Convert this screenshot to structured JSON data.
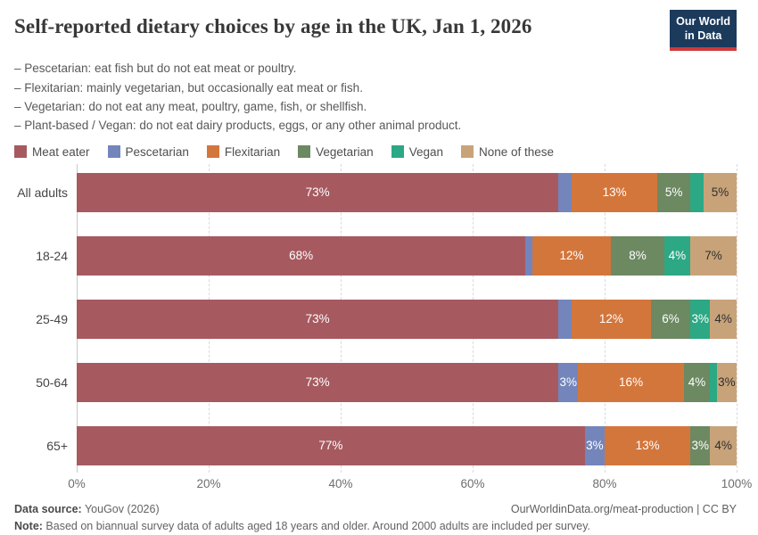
{
  "header": {
    "title": "Self-reported dietary choices by age in the UK, Jan 1, 2026",
    "logo": {
      "line1": "Our World",
      "line2": "in Data"
    },
    "subtitle_lines": [
      "– Pescetarian: eat fish but do not eat meat or poultry.",
      "– Flexitarian: mainly vegetarian, but occasionally eat meat or fish.",
      "– Vegetarian: do not eat any meat, poultry, game, fish, or shellfish.",
      "– Plant-based / Vegan: do not eat dairy products, eggs, or any other animal product."
    ]
  },
  "brand": {
    "logo_bg": "#1B3A5C",
    "logo_underline": "#CE3B3B"
  },
  "chart_data": {
    "type": "bar",
    "orientation": "horizontal",
    "stacked": true,
    "title": "Self-reported dietary choices by age in the UK, Jan 1, 2026",
    "categories": [
      "All adults",
      "18-24",
      "25-49",
      "50-64",
      "65+"
    ],
    "series": [
      {
        "name": "Meat eater",
        "color": "#A65A60",
        "label_color": "#ffffff",
        "values": [
          73,
          68,
          73,
          73,
          77
        ]
      },
      {
        "name": "Pescetarian",
        "color": "#7385BB",
        "label_color": "#ffffff",
        "values": [
          2,
          1,
          2,
          3,
          3
        ]
      },
      {
        "name": "Flexitarian",
        "color": "#D3763C",
        "label_color": "#ffffff",
        "values": [
          13,
          12,
          12,
          16,
          13
        ]
      },
      {
        "name": "Vegetarian",
        "color": "#6C8962",
        "label_color": "#ffffff",
        "values": [
          5,
          8,
          6,
          4,
          3
        ]
      },
      {
        "name": "Vegan",
        "color": "#2CA884",
        "label_color": "#ffffff",
        "values": [
          2,
          4,
          3,
          1,
          0
        ]
      },
      {
        "name": "None of these",
        "color": "#C8A379",
        "label_color": "#2f2f2f",
        "values": [
          5,
          7,
          4,
          3,
          4
        ]
      }
    ],
    "value_suffix": "%",
    "label_min_value": 3,
    "xlim": [
      0,
      100
    ],
    "x_ticks": [
      {
        "label": "0%",
        "value": 0
      },
      {
        "label": "20%",
        "value": 20
      },
      {
        "label": "40%",
        "value": 40
      },
      {
        "label": "60%",
        "value": 60
      },
      {
        "label": "80%",
        "value": 80
      },
      {
        "label": "100%",
        "value": 100
      }
    ],
    "grid": "vertical-dashed",
    "legend_position": "top"
  },
  "footer": {
    "source_label": "Data source:",
    "source_value": " YouGov (2026)",
    "link": "OurWorldinData.org/meat-production | CC BY",
    "note_label": "Note:",
    "note_value": " Based on biannual survey data of adults aged 18 years and older. Around 2000 adults are included per survey."
  }
}
